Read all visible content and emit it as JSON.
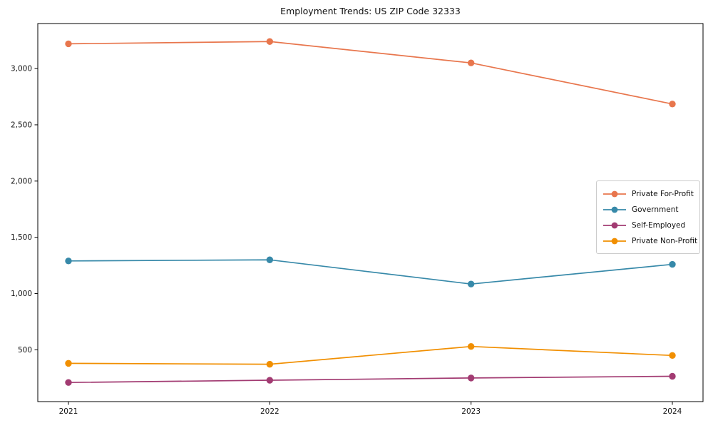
{
  "page": {
    "background": "#ffffff"
  },
  "chart_data": {
    "type": "line",
    "title": "Employment Trends: US ZIP Code 32333",
    "categories": [
      "2021",
      "2022",
      "2023",
      "2024"
    ],
    "series": [
      {
        "name": "Private For-Profit",
        "color": "#E8764D",
        "values": [
          3220,
          3240,
          3050,
          2685
        ]
      },
      {
        "name": "Government",
        "color": "#3789A9",
        "values": [
          1290,
          1300,
          1085,
          1260
        ]
      },
      {
        "name": "Self-Employed",
        "color": "#A23B72",
        "values": [
          210,
          230,
          250,
          265
        ]
      },
      {
        "name": "Private Non-Profit",
        "color": "#F18F01",
        "values": [
          380,
          372,
          530,
          450
        ]
      }
    ],
    "xlabel": "",
    "ylabel": "",
    "ylim": [
      40,
      3400
    ],
    "yticks": [
      500,
      1000,
      1500,
      2000,
      2500,
      3000
    ],
    "ytick_labels": [
      "500",
      "1,000",
      "1,500",
      "2,000",
      "2,500",
      "3,000"
    ],
    "grid": false,
    "legend_position": "center-right",
    "axis_color": "#000000",
    "tick_label_color": "#111111",
    "marker": "circle",
    "line_width": 1.7,
    "marker_radius": 4.7
  }
}
